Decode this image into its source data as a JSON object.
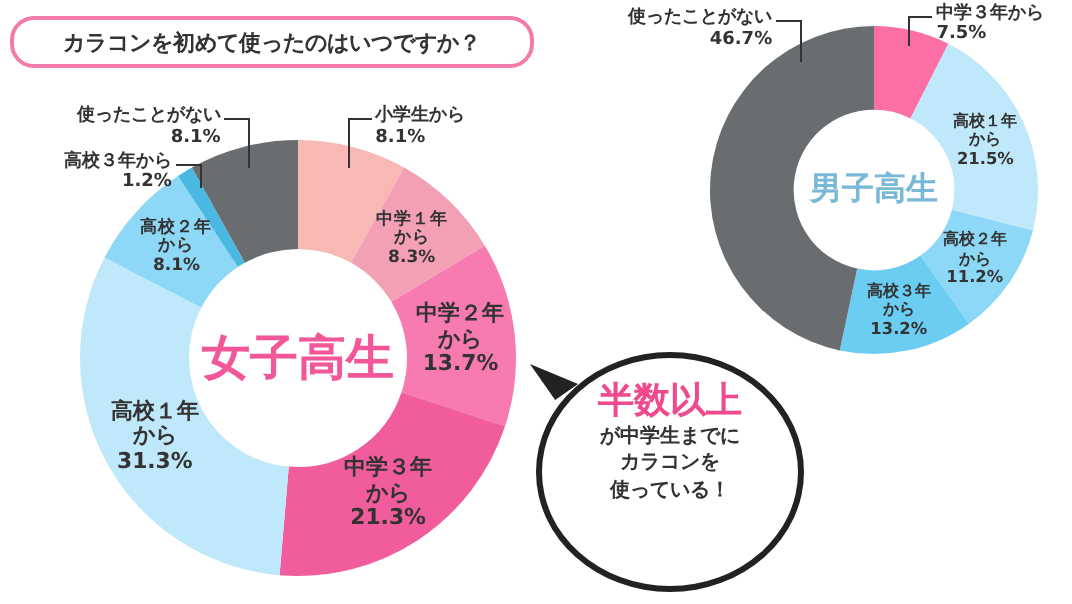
{
  "chart_data": [
    {
      "type": "donut",
      "title": "カラコンを初めて使ったのはいつですか？",
      "subtitle": "女子高生",
      "categories": [
        "小学生から",
        "中学１年から",
        "中学２年から",
        "中学３年から",
        "高校１年から",
        "高校２年から",
        "高校３年から",
        "使ったことがない"
      ],
      "values": [
        8.1,
        8.3,
        13.7,
        21.3,
        31.3,
        8.1,
        1.2,
        8.1
      ],
      "value_labels": [
        "8.1%",
        "8.3%",
        "13.7%",
        "21.3%",
        "31.3%",
        "8.1%",
        "1.2%",
        "8.1%"
      ],
      "colors": [
        "#f8b8b4",
        "#f3a0b4",
        "#f77bb0",
        "#f05c9c",
        "#c0e8fb",
        "#8dd8f7",
        "#4ab8e3",
        "#696d70"
      ],
      "annotations": [
        "半数以上",
        "が中学生までに",
        "カラコンを",
        "使っている！"
      ],
      "legend": false
    },
    {
      "type": "donut",
      "subtitle": "男子高生",
      "categories": [
        "中学３年から",
        "高校１年から",
        "高校２年から",
        "高校３年から",
        "使ったことがない"
      ],
      "values": [
        7.5,
        21.5,
        11.2,
        13.2,
        46.7
      ],
      "value_labels": [
        "7.5%",
        "21.5%",
        "11.2%",
        "13.2%",
        "46.7%"
      ],
      "colors": [
        "#fb6fa5",
        "#c0e8fb",
        "#8dd8f7",
        "#6ccdf2",
        "#696d70"
      ],
      "legend": false
    }
  ]
}
